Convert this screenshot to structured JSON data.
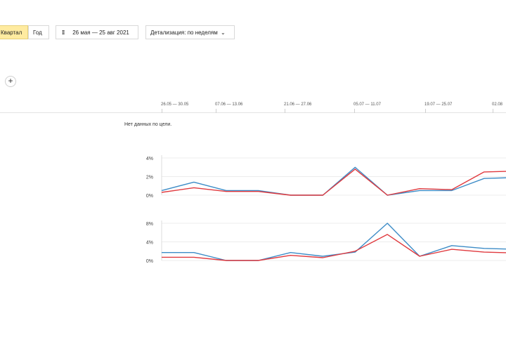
{
  "toolbar": {
    "quarter_label": "Квартал",
    "year_label": "Год",
    "date_range_label": "26 мая — 25 авг 2021",
    "detail_label": "Детализация: по неделям"
  },
  "timeline": {
    "ticks": [
      "26.05 — 30.05",
      "07.06 — 13.06",
      "21.06 — 27.06",
      "05.07 — 11.07",
      "19.07 — 25.07",
      "02.08"
    ]
  },
  "goal_message": "Нет данных по цели.",
  "colors": {
    "blue": "#3d8cc7",
    "red": "#e0393e",
    "grid": "#ececec",
    "active_period": "#ffeba0"
  },
  "chart_data": [
    {
      "type": "line",
      "ylim": [
        0,
        4
      ],
      "y_ticks": [
        "4%",
        "2%",
        "0%"
      ],
      "x_count": 12,
      "series": [
        {
          "color": "#3d8cc7",
          "values": [
            0.5,
            1.4,
            0.5,
            0.5,
            0.0,
            0.0,
            3.0,
            0.0,
            0.5,
            0.5,
            1.8,
            1.9
          ]
        },
        {
          "color": "#e0393e",
          "values": [
            0.3,
            0.8,
            0.4,
            0.4,
            0.0,
            0.0,
            2.8,
            0.0,
            0.7,
            0.6,
            2.5,
            2.6
          ]
        }
      ]
    },
    {
      "type": "line",
      "ylim": [
        0,
        8
      ],
      "y_ticks": [
        "8%",
        "4%",
        "0%"
      ],
      "x_count": 12,
      "series": [
        {
          "color": "#3d8cc7",
          "values": [
            1.7,
            1.7,
            0.0,
            0.0,
            1.7,
            0.9,
            1.8,
            8.0,
            0.9,
            3.2,
            2.6,
            2.4
          ]
        },
        {
          "color": "#e0393e",
          "values": [
            0.7,
            0.7,
            0.0,
            0.0,
            1.1,
            0.6,
            2.0,
            5.6,
            0.9,
            2.4,
            1.8,
            1.6
          ]
        }
      ]
    }
  ]
}
